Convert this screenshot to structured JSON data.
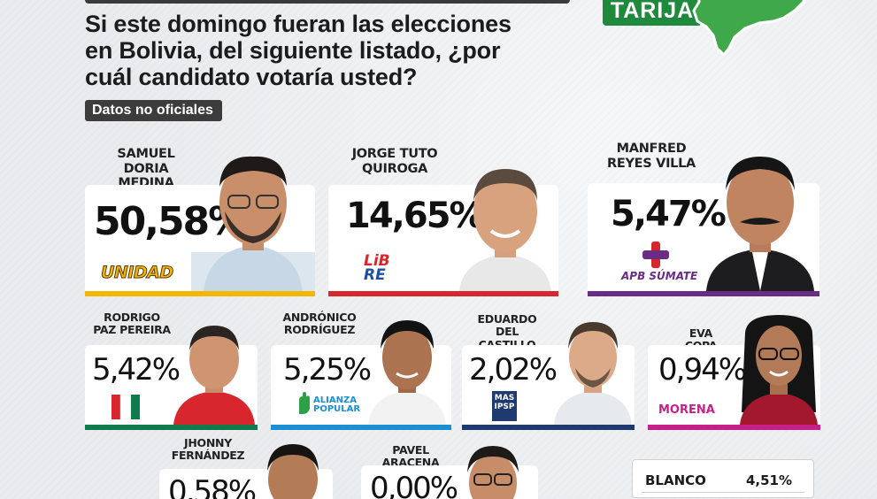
{
  "headline": "Si este domingo fueran las elecciones\nen Bolivia, del siguiente listado, ¿por\ncuál candidato votaría usted?",
  "badge": "Datos no oficiales",
  "region": "TARIJA",
  "colors": {
    "green": "#1f8a3e",
    "unidad": "#f2b705",
    "libre": "#d7262d",
    "sumate": "#6b2c86",
    "pdc": "#0f7a4a",
    "alianza": "#1b8fd1",
    "mas": "#1e3a6e",
    "morena": "#c4218a"
  },
  "candidates": [
    {
      "name": "SAMUEL\nDORIA MEDINA",
      "pct": "50,58%",
      "party": "UNIDAD"
    },
    {
      "name": "JORGE TUTO\nQUIROGA",
      "pct": "14,65%",
      "party": "LIBRE"
    },
    {
      "name": "MANFRED\nREYES VILLA",
      "pct": "5,47%",
      "party": "APB SÚMATE"
    },
    {
      "name": "RODRIGO\nPAZ PEREIRA",
      "pct": "5,42%",
      "party": "PDC"
    },
    {
      "name": "ANDRÓNICO\nRODRÍGUEZ",
      "pct": "5,25%",
      "party": "ALIANZA POPULAR"
    },
    {
      "name": "EDUARDO\nDEL CASTILLO",
      "pct": "2,02%",
      "party": "MAS IPSP"
    },
    {
      "name": "EVA COPA",
      "pct": "0,94%",
      "party": "MORENA"
    },
    {
      "name": "JHONNY\nFERNÁNDEZ",
      "pct": "0,58%",
      "party": ""
    },
    {
      "name": "PAVEL ARACENA",
      "pct": "0,00%",
      "party": ""
    }
  ],
  "blanco": {
    "label": "BLANCO",
    "value": "4,51%"
  }
}
